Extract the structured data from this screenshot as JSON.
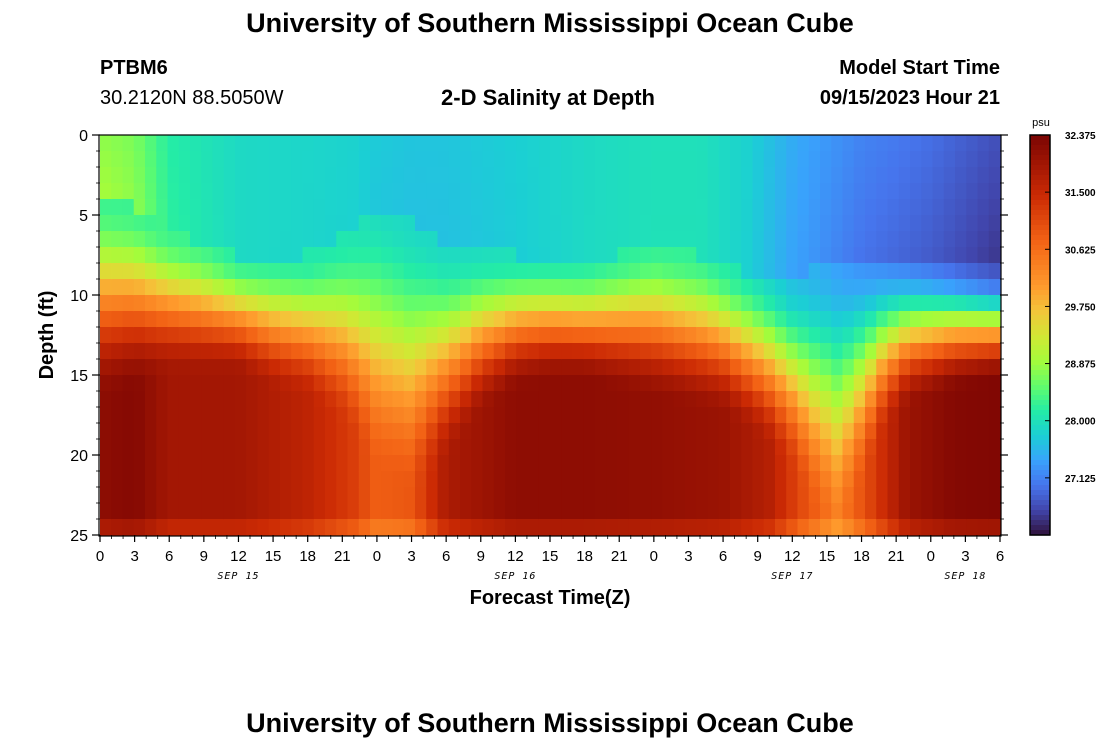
{
  "header": {
    "title": "University of Southern Mississippi Ocean Cube",
    "station_id": "PTBM6",
    "station_coords": "30.2120N  88.5050W",
    "plot_title": "2-D Salinity at Depth",
    "model_start_label": "Model Start Time",
    "model_start_value": "09/15/2023 Hour 21"
  },
  "footer": {
    "title": "University of Southern Mississippi Ocean Cube"
  },
  "chart_data": {
    "type": "heatmap",
    "title": "2-D Salinity at Depth",
    "xlabel": "Forecast Time(Z)",
    "ylabel": "Depth (ft)",
    "units": "psu",
    "x_hours_range": [
      0,
      78
    ],
    "x_tick_labels": [
      "0",
      "3",
      "6",
      "9",
      "12",
      "15",
      "18",
      "21",
      "0",
      "3",
      "6",
      "9",
      "12",
      "15",
      "18",
      "21",
      "0",
      "3",
      "6",
      "9",
      "12",
      "15",
      "18",
      "21",
      "0",
      "3",
      "6"
    ],
    "date_labels": [
      {
        "label": "SEP 15",
        "hour": 12
      },
      {
        "label": "SEP 16",
        "hour": 36
      },
      {
        "label": "SEP 17",
        "hour": 60
      },
      {
        "label": "SEP 18",
        "hour": 75
      }
    ],
    "y_ticks": [
      0,
      5,
      10,
      15,
      20,
      25
    ],
    "ylim": [
      0,
      25
    ],
    "colorbar_ticks": [
      "32.375",
      "31.500",
      "30.625",
      "29.750",
      "28.875",
      "28.000",
      "27.125"
    ],
    "colorbar_range": [
      26.25,
      32.375
    ],
    "colors": {
      "low": "#30123b",
      "mid": "#a4fc3c",
      "high": "#7a0403"
    },
    "trough_profile": [
      {
        "hour": 0,
        "trough_depth_ft": 4.0,
        "surface_psu": 28.95
      },
      {
        "hour": 3,
        "trough_depth_ft": 4.5,
        "surface_psu": 28.8
      },
      {
        "hour": 6,
        "trough_depth_ft": 6.0,
        "surface_psu": 28.2
      },
      {
        "hour": 12,
        "trough_depth_ft": 7.5,
        "surface_psu": 27.9
      },
      {
        "hour": 18,
        "trough_depth_ft": 7.5,
        "surface_psu": 27.85
      },
      {
        "hour": 22,
        "trough_depth_ft": 6.0,
        "surface_psu": 27.8
      },
      {
        "hour": 24,
        "trough_depth_ft": 4.8,
        "surface_psu": 27.7
      },
      {
        "hour": 27,
        "trough_depth_ft": 5.5,
        "surface_psu": 27.65
      },
      {
        "hour": 30,
        "trough_depth_ft": 7.0,
        "surface_psu": 27.65
      },
      {
        "hour": 36,
        "trough_depth_ft": 7.5,
        "surface_psu": 27.75
      },
      {
        "hour": 42,
        "trough_depth_ft": 8.0,
        "surface_psu": 27.9
      },
      {
        "hour": 48,
        "trough_depth_ft": 7.0,
        "surface_psu": 28.0
      },
      {
        "hour": 52,
        "trough_depth_ft": 7.5,
        "surface_psu": 28.0
      },
      {
        "hour": 56,
        "trough_depth_ft": 8.5,
        "surface_psu": 27.8
      },
      {
        "hour": 60,
        "trough_depth_ft": 9.0,
        "surface_psu": 27.4
      },
      {
        "hour": 63,
        "trough_depth_ft": 8.0,
        "surface_psu": 27.2
      },
      {
        "hour": 66,
        "trough_depth_ft": 7.5,
        "surface_psu": 27.0
      },
      {
        "hour": 72,
        "trough_depth_ft": 8.0,
        "surface_psu": 26.8
      },
      {
        "hour": 78,
        "trough_depth_ft": 8.5,
        "surface_psu": 26.5
      }
    ],
    "halocline_profile": [
      {
        "hour": 0,
        "depth_ft": 13.0
      },
      {
        "hour": 3,
        "depth_ft": 12.5
      },
      {
        "hour": 6,
        "depth_ft": 11.5
      },
      {
        "hour": 9,
        "depth_ft": 11.5
      },
      {
        "hour": 12,
        "depth_ft": 11.5
      },
      {
        "hour": 15,
        "depth_ft": 12.5
      },
      {
        "hour": 18,
        "depth_ft": 13.0
      },
      {
        "hour": 21,
        "depth_ft": 14.5
      },
      {
        "hour": 24,
        "depth_ft": 17.5
      },
      {
        "hour": 27,
        "depth_ft": 19.0
      },
      {
        "hour": 30,
        "depth_ft": 17.0
      },
      {
        "hour": 33,
        "depth_ft": 14.0
      },
      {
        "hour": 36,
        "depth_ft": 12.5
      },
      {
        "hour": 39,
        "depth_ft": 12.0
      },
      {
        "hour": 42,
        "depth_ft": 12.0
      },
      {
        "hour": 45,
        "depth_ft": 12.5
      },
      {
        "hour": 48,
        "depth_ft": 13.0
      },
      {
        "hour": 51,
        "depth_ft": 13.5
      },
      {
        "hour": 54,
        "depth_ft": 14.0
      },
      {
        "hour": 57,
        "depth_ft": 15.5
      },
      {
        "hour": 60,
        "depth_ft": 17.5
      },
      {
        "hour": 62,
        "depth_ft": 20.0
      },
      {
        "hour": 64,
        "depth_ft": 21.5
      },
      {
        "hour": 66,
        "depth_ft": 18.5
      },
      {
        "hour": 68,
        "depth_ft": 15.0
      },
      {
        "hour": 70,
        "depth_ft": 13.5
      },
      {
        "hour": 74,
        "depth_ft": 12.5
      },
      {
        "hour": 78,
        "depth_ft": 12.0
      }
    ],
    "bottom_profile": [
      {
        "hour": 0,
        "psu": 32.15
      },
      {
        "hour": 3,
        "psu": 32.25
      },
      {
        "hour": 6,
        "psu": 31.9
      },
      {
        "hour": 12,
        "psu": 31.9
      },
      {
        "hour": 18,
        "psu": 31.6
      },
      {
        "hour": 22,
        "psu": 31.2
      },
      {
        "hour": 24,
        "psu": 30.8
      },
      {
        "hour": 27,
        "psu": 30.9
      },
      {
        "hour": 30,
        "psu": 31.8
      },
      {
        "hour": 36,
        "psu": 32.15
      },
      {
        "hour": 42,
        "psu": 32.15
      },
      {
        "hour": 48,
        "psu": 32.1
      },
      {
        "hour": 54,
        "psu": 32.0
      },
      {
        "hour": 58,
        "psu": 31.7
      },
      {
        "hour": 61,
        "psu": 31.0
      },
      {
        "hour": 64,
        "psu": 30.4
      },
      {
        "hour": 67,
        "psu": 31.2
      },
      {
        "hour": 70,
        "psu": 32.0
      },
      {
        "hour": 74,
        "psu": 32.25
      },
      {
        "hour": 78,
        "psu": 32.3
      }
    ]
  }
}
